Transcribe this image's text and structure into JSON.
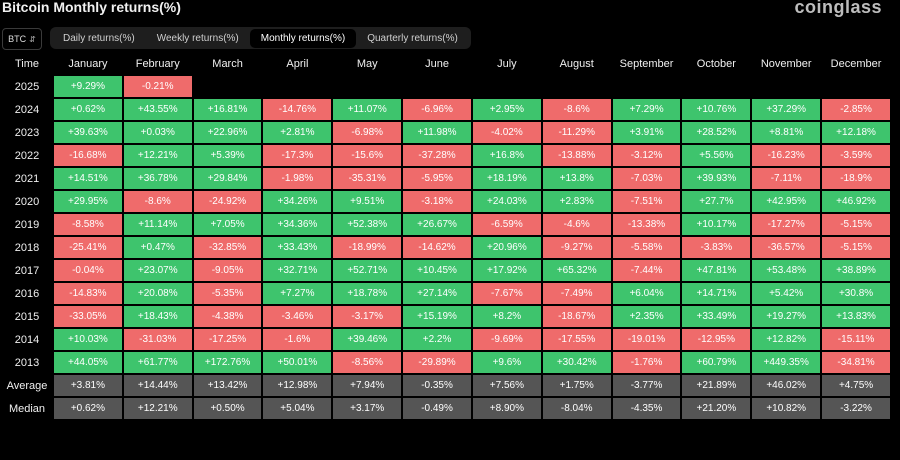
{
  "title": "Bitcoin Monthly returns(%)",
  "brand": "coinglass",
  "asset": {
    "selected": "BTC"
  },
  "tabs": [
    "Daily returns(%)",
    "Weekly returns(%)",
    "Monthly returns(%)",
    "Quarterly returns(%)"
  ],
  "active_tab": 2,
  "colors": {
    "positive": "#3ec46d",
    "negative": "#ef6b6b",
    "stat": "#555555"
  },
  "table": {
    "columns": [
      "Time",
      "January",
      "February",
      "March",
      "April",
      "May",
      "June",
      "July",
      "August",
      "September",
      "October",
      "November",
      "December"
    ],
    "rows": [
      {
        "year": "2025",
        "values": [
          "+9.29%",
          "-0.21%",
          "",
          "",
          "",
          "",
          "",
          "",
          "",
          "",
          "",
          ""
        ]
      },
      {
        "year": "2024",
        "values": [
          "+0.62%",
          "+43.55%",
          "+16.81%",
          "-14.76%",
          "+11.07%",
          "-6.96%",
          "+2.95%",
          "-8.6%",
          "+7.29%",
          "+10.76%",
          "+37.29%",
          "-2.85%"
        ]
      },
      {
        "year": "2023",
        "values": [
          "+39.63%",
          "+0.03%",
          "+22.96%",
          "+2.81%",
          "-6.98%",
          "+11.98%",
          "-4.02%",
          "-11.29%",
          "+3.91%",
          "+28.52%",
          "+8.81%",
          "+12.18%"
        ]
      },
      {
        "year": "2022",
        "values": [
          "-16.68%",
          "+12.21%",
          "+5.39%",
          "-17.3%",
          "-15.6%",
          "-37.28%",
          "+16.8%",
          "-13.88%",
          "-3.12%",
          "+5.56%",
          "-16.23%",
          "-3.59%"
        ]
      },
      {
        "year": "2021",
        "values": [
          "+14.51%",
          "+36.78%",
          "+29.84%",
          "-1.98%",
          "-35.31%",
          "-5.95%",
          "+18.19%",
          "+13.8%",
          "-7.03%",
          "+39.93%",
          "-7.11%",
          "-18.9%"
        ]
      },
      {
        "year": "2020",
        "values": [
          "+29.95%",
          "-8.6%",
          "-24.92%",
          "+34.26%",
          "+9.51%",
          "-3.18%",
          "+24.03%",
          "+2.83%",
          "-7.51%",
          "+27.7%",
          "+42.95%",
          "+46.92%"
        ]
      },
      {
        "year": "2019",
        "values": [
          "-8.58%",
          "+11.14%",
          "+7.05%",
          "+34.36%",
          "+52.38%",
          "+26.67%",
          "-6.59%",
          "-4.6%",
          "-13.38%",
          "+10.17%",
          "-17.27%",
          "-5.15%"
        ]
      },
      {
        "year": "2018",
        "values": [
          "-25.41%",
          "+0.47%",
          "-32.85%",
          "+33.43%",
          "-18.99%",
          "-14.62%",
          "+20.96%",
          "-9.27%",
          "-5.58%",
          "-3.83%",
          "-36.57%",
          "-5.15%"
        ]
      },
      {
        "year": "2017",
        "values": [
          "-0.04%",
          "+23.07%",
          "-9.05%",
          "+32.71%",
          "+52.71%",
          "+10.45%",
          "+17.92%",
          "+65.32%",
          "-7.44%",
          "+47.81%",
          "+53.48%",
          "+38.89%"
        ]
      },
      {
        "year": "2016",
        "values": [
          "-14.83%",
          "+20.08%",
          "-5.35%",
          "+7.27%",
          "+18.78%",
          "+27.14%",
          "-7.67%",
          "-7.49%",
          "+6.04%",
          "+14.71%",
          "+5.42%",
          "+30.8%"
        ]
      },
      {
        "year": "2015",
        "values": [
          "-33.05%",
          "+18.43%",
          "-4.38%",
          "-3.46%",
          "-3.17%",
          "+15.19%",
          "+8.2%",
          "-18.67%",
          "+2.35%",
          "+33.49%",
          "+19.27%",
          "+13.83%"
        ]
      },
      {
        "year": "2014",
        "values": [
          "+10.03%",
          "-31.03%",
          "-17.25%",
          "-1.6%",
          "+39.46%",
          "+2.2%",
          "-9.69%",
          "-17.55%",
          "-19.01%",
          "-12.95%",
          "+12.82%",
          "-15.11%"
        ]
      },
      {
        "year": "2013",
        "values": [
          "+44.05%",
          "+61.77%",
          "+172.76%",
          "+50.01%",
          "-8.56%",
          "-29.89%",
          "+9.6%",
          "+30.42%",
          "-1.76%",
          "+60.79%",
          "+449.35%",
          "-34.81%"
        ]
      }
    ],
    "stats": [
      {
        "label": "Average",
        "values": [
          "+3.81%",
          "+14.44%",
          "+13.42%",
          "+12.98%",
          "+7.94%",
          "-0.35%",
          "+7.56%",
          "+1.75%",
          "-3.77%",
          "+21.89%",
          "+46.02%",
          "+4.75%"
        ]
      },
      {
        "label": "Median",
        "values": [
          "+0.62%",
          "+12.21%",
          "+0.50%",
          "+5.04%",
          "+3.17%",
          "-0.49%",
          "+8.90%",
          "-8.04%",
          "-4.35%",
          "+21.20%",
          "+10.82%",
          "-3.22%"
        ]
      }
    ]
  }
}
